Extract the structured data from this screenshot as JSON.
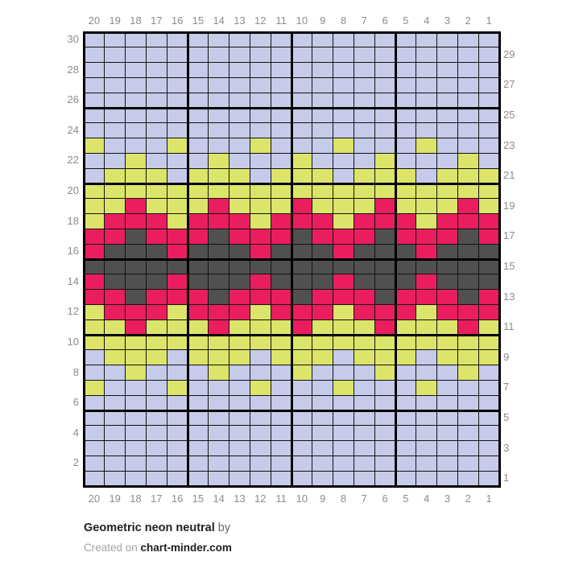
{
  "title": {
    "name": "Geometric neon neutral",
    "by": "by"
  },
  "credit": {
    "prefix": "Created on ",
    "site": "chart-minder.com"
  },
  "colors": {
    "L": "#c6cbe9",
    "Y": "#dde46a",
    "P": "#ea1e5f",
    "D": "#505050",
    "gridline_thin": "#121212",
    "gridline_bold": "#000000",
    "axis_label": "#8c8c8c"
  },
  "axes": {
    "top": [
      "20",
      "19",
      "18",
      "17",
      "16",
      "15",
      "14",
      "13",
      "12",
      "11",
      "10",
      "9",
      "8",
      "7",
      "6",
      "5",
      "4",
      "3",
      "2",
      "1"
    ],
    "bottom": [
      "20",
      "19",
      "18",
      "17",
      "16",
      "15",
      "14",
      "13",
      "12",
      "11",
      "10",
      "9",
      "8",
      "7",
      "6",
      "5",
      "4",
      "3",
      "2",
      "1"
    ],
    "left": [
      "30",
      "28",
      "26",
      "24",
      "22",
      "20",
      "18",
      "16",
      "14",
      "12",
      "10",
      "8",
      "6",
      "4",
      "2"
    ],
    "right": [
      "29",
      "27",
      "25",
      "23",
      "21",
      "19",
      "17",
      "15",
      "13",
      "11",
      "9",
      "7",
      "5",
      "3",
      "1"
    ]
  },
  "chart_data": {
    "type": "heatmap",
    "title": "Geometric neon neutral",
    "columns": 20,
    "rows": 30,
    "first_row_is": 30,
    "column_order": "left to right is column 20 down to column 1",
    "bold_grid_every": 5,
    "legend": {
      "L": "lavender #c6cbe9",
      "Y": "neon yellow-green #dde46a",
      "P": "pink #ea1e5f",
      "D": "dark gray #505050"
    },
    "grid": [
      "LLLLLLLLLLLLLLLLLLLL",
      "LLLLLLLLLLLLLLLLLLLL",
      "LLLLLLLLLLLLLLLLLLLL",
      "LLLLLLLLLLLLLLLLLLLL",
      "LLLLLLLLLLLLLLLLLLLL",
      "LLLLLLLLLLLLLLLLLLLL",
      "LLLLLLLLLLLLLLLLLLLL",
      "YLLLYLLLYLLLYLLLYLLL",
      "LLYLLLYLLLYLLLYLLLYL",
      "LYYYLYYYLYYYLYYYLYYY",
      "YYYYYYYYYYYYYYYYYYYY",
      "YYPYYYPYYYPYYYPYYYPY",
      "YPPPYPPPYPPPYPPPYPPP",
      "PPDPPPDPPPDPPPDPPPDP",
      "PDDDPDDDPDDDPDDDPDDD",
      "DDDDDDDDDDDDDDDDDDDD",
      "PDDDPDDDPDDDPDDDPDDD",
      "PPDPPPDPPPDPPPDPPPDP",
      "YPPPYPPPYPPPYPPPYPPP",
      "YYPYYYPYYYPYYYPYYYPY",
      "YYYYYYYYYYYYYYYYYYYY",
      "LYYYLYYYLYYYLYYYLYYY",
      "LLYLLLYLLLYLLLYLLLYL",
      "YLLLYLLLYLLLYLLLYLLL",
      "LLLLLLLLLLLLLLLLLLLL",
      "LLLLLLLLLLLLLLLLLLLL",
      "LLLLLLLLLLLLLLLLLLLL",
      "LLLLLLLLLLLLLLLLLLLL",
      "LLLLLLLLLLLLLLLLLLLL",
      "LLLLLLLLLLLLLLLLLLLL"
    ]
  }
}
